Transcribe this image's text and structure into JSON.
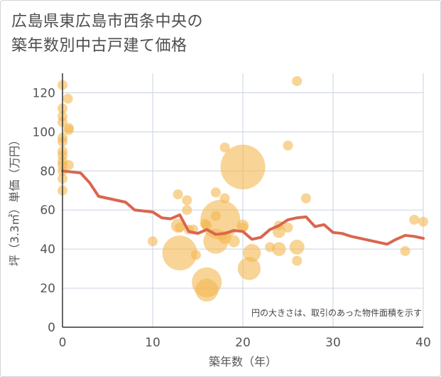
{
  "title": {
    "line1": "広島県東広島市西条中央の",
    "line2": "築年数別中古戸建て価格"
  },
  "colors": {
    "bubble": "#f3b850",
    "bubble_opacity": 0.6,
    "line": "#d9664f",
    "grid": "#c9d3e0",
    "axis": "#333333",
    "text": "#555555"
  },
  "chart_data": {
    "type": "scatter",
    "title": "広島県東広島市西条中央の築年数別中古戸建て価格",
    "xlabel": "築年数（年）",
    "ylabel": "坪（3.3㎡）単価（万円）",
    "xlim": [
      0,
      40
    ],
    "ylim": [
      0,
      130
    ],
    "xticks": [
      0,
      10,
      20,
      30,
      40
    ],
    "yticks": [
      0,
      20,
      40,
      60,
      80,
      100,
      120
    ],
    "grid": true,
    "note": "円の大きさは、取引のあった物件面積を示す",
    "scatter": [
      {
        "x": 0,
        "y": 124,
        "s": 1
      },
      {
        "x": 0,
        "y": 112,
        "s": 1
      },
      {
        "x": 0,
        "y": 108,
        "s": 1
      },
      {
        "x": 0,
        "y": 105,
        "s": 1
      },
      {
        "x": 0,
        "y": 97,
        "s": 1
      },
      {
        "x": 0,
        "y": 95,
        "s": 1
      },
      {
        "x": 0,
        "y": 90,
        "s": 1
      },
      {
        "x": 0,
        "y": 88,
        "s": 1
      },
      {
        "x": 0,
        "y": 85,
        "s": 1
      },
      {
        "x": 0,
        "y": 83,
        "s": 1
      },
      {
        "x": 0,
        "y": 80,
        "s": 1
      },
      {
        "x": 0,
        "y": 76,
        "s": 1
      },
      {
        "x": 0,
        "y": 70,
        "s": 1
      },
      {
        "x": 0.6,
        "y": 117,
        "s": 1
      },
      {
        "x": 0.7,
        "y": 102,
        "s": 1
      },
      {
        "x": 0.7,
        "y": 101,
        "s": 1
      },
      {
        "x": 0.7,
        "y": 83,
        "s": 1
      },
      {
        "x": 10,
        "y": 44,
        "s": 1
      },
      {
        "x": 12.8,
        "y": 68,
        "s": 1
      },
      {
        "x": 12.8,
        "y": 52,
        "s": 1.4
      },
      {
        "x": 13,
        "y": 51,
        "s": 1
      },
      {
        "x": 13,
        "y": 38,
        "s": 3.5
      },
      {
        "x": 13.8,
        "y": 65,
        "s": 1
      },
      {
        "x": 13.8,
        "y": 60,
        "s": 1
      },
      {
        "x": 14,
        "y": 50,
        "s": 1
      },
      {
        "x": 14.5,
        "y": 50,
        "s": 1
      },
      {
        "x": 14.8,
        "y": 37,
        "s": 1
      },
      {
        "x": 15.8,
        "y": 53,
        "s": 1
      },
      {
        "x": 16,
        "y": 52,
        "s": 1
      },
      {
        "x": 16,
        "y": 23,
        "s": 3
      },
      {
        "x": 16,
        "y": 19,
        "s": 2.3
      },
      {
        "x": 17,
        "y": 69,
        "s": 1
      },
      {
        "x": 17,
        "y": 57,
        "s": 1
      },
      {
        "x": 17,
        "y": 44,
        "s": 2.5
      },
      {
        "x": 17.5,
        "y": 55,
        "s": 4
      },
      {
        "x": 18,
        "y": 92,
        "s": 1
      },
      {
        "x": 18,
        "y": 66,
        "s": 1
      },
      {
        "x": 18,
        "y": 46,
        "s": 1.3
      },
      {
        "x": 19,
        "y": 44,
        "s": 1.2
      },
      {
        "x": 20,
        "y": 82,
        "s": 4.5
      },
      {
        "x": 20,
        "y": 52,
        "s": 1.2
      },
      {
        "x": 20,
        "y": 51,
        "s": 1
      },
      {
        "x": 20.7,
        "y": 30,
        "s": 2.3
      },
      {
        "x": 21,
        "y": 38,
        "s": 1.8
      },
      {
        "x": 23,
        "y": 41,
        "s": 1
      },
      {
        "x": 24,
        "y": 52,
        "s": 1
      },
      {
        "x": 24,
        "y": 49,
        "s": 1.3
      },
      {
        "x": 24,
        "y": 40,
        "s": 1.4
      },
      {
        "x": 25,
        "y": 93,
        "s": 1
      },
      {
        "x": 25,
        "y": 51,
        "s": 1
      },
      {
        "x": 26,
        "y": 126,
        "s": 1
      },
      {
        "x": 26,
        "y": 41,
        "s": 1.5
      },
      {
        "x": 26,
        "y": 34,
        "s": 1
      },
      {
        "x": 27,
        "y": 66,
        "s": 1
      },
      {
        "x": 38,
        "y": 39,
        "s": 1
      },
      {
        "x": 39,
        "y": 55,
        "s": 1
      },
      {
        "x": 40,
        "y": 54,
        "s": 1
      }
    ],
    "line": {
      "x": [
        0,
        1,
        2,
        3,
        4,
        5,
        6,
        7,
        8,
        9,
        10,
        11,
        12,
        13,
        14,
        15,
        16,
        17,
        18,
        19,
        20,
        21,
        22,
        23,
        24,
        25,
        26,
        27,
        28,
        29,
        30,
        31,
        32,
        33,
        34,
        35,
        36,
        37,
        38,
        39,
        40
      ],
      "y": [
        80,
        79.5,
        79,
        74,
        67,
        66,
        65,
        64,
        60,
        59.5,
        59,
        56,
        55.5,
        57.5,
        49,
        48,
        50,
        47.5,
        48,
        49.5,
        49,
        45,
        46,
        50,
        52,
        55,
        56,
        56.5,
        51.5,
        52.5,
        48.5,
        48,
        46.5,
        45.5,
        44.5,
        43.5,
        42.5,
        45,
        47,
        46.5,
        45.5
      ]
    }
  }
}
